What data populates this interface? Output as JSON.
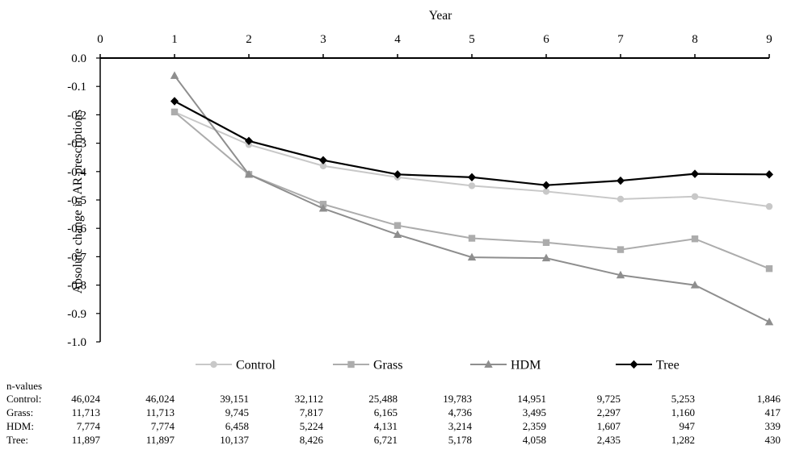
{
  "chart_data": {
    "type": "line",
    "xlabel": "Year",
    "ylabel": "Absolute change in AR prescriptions",
    "x_ticks": [
      "0",
      "1",
      "2",
      "3",
      "4",
      "5",
      "6",
      "7",
      "8",
      "9"
    ],
    "y_ticks": [
      "0.0",
      "-0.1",
      "-0.2",
      "-0.3",
      "-0.4",
      "-0.5",
      "-0.6",
      "-0.7",
      "-0.8",
      "-0.9",
      "-1.0"
    ],
    "xlim": [
      0,
      9
    ],
    "ylim": [
      -1.0,
      0.0
    ],
    "x_axis_position": "top",
    "grid": false,
    "legend_position": "bottom",
    "x": [
      1,
      2,
      3,
      4,
      5,
      6,
      7,
      8,
      9
    ],
    "series": [
      {
        "name": "Control",
        "marker": "circle",
        "color": "#c8c8c8",
        "values": [
          -0.19,
          -0.305,
          -0.38,
          -0.42,
          -0.45,
          -0.47,
          -0.497,
          -0.488,
          -0.523
        ]
      },
      {
        "name": "Grass",
        "marker": "square",
        "color": "#acacac",
        "values": [
          -0.19,
          -0.41,
          -0.515,
          -0.59,
          -0.635,
          -0.65,
          -0.675,
          -0.637,
          -0.742
        ]
      },
      {
        "name": "HDM",
        "marker": "triangle",
        "color": "#8e8e8e",
        "values": [
          -0.062,
          -0.41,
          -0.53,
          -0.622,
          -0.702,
          -0.705,
          -0.765,
          -0.8,
          -0.93
        ]
      },
      {
        "name": "Tree",
        "marker": "diamond",
        "color": "#000000",
        "values": [
          -0.152,
          -0.292,
          -0.36,
          -0.41,
          -0.42,
          -0.448,
          -0.432,
          -0.408,
          -0.41
        ]
      }
    ]
  },
  "n_values": {
    "title": "n-values",
    "rows": [
      {
        "label": "Control:",
        "values": [
          "46,024",
          "46,024",
          "39,151",
          "32,112",
          "25,488",
          "19,783",
          "14,951",
          "9,725",
          "5,253",
          "1,846"
        ]
      },
      {
        "label": "Grass:",
        "values": [
          "11,713",
          "11,713",
          "9,745",
          "7,817",
          "6,165",
          "4,736",
          "3,495",
          "2,297",
          "1,160",
          "417"
        ]
      },
      {
        "label": "HDM:",
        "values": [
          "7,774",
          "7,774",
          "6,458",
          "5,224",
          "4,131",
          "3,214",
          "2,359",
          "1,607",
          "947",
          "339"
        ]
      },
      {
        "label": "Tree:",
        "values": [
          "11,897",
          "11,897",
          "10,137",
          "8,426",
          "6,721",
          "5,178",
          "4,058",
          "2,435",
          "1,282",
          "430"
        ]
      }
    ]
  }
}
